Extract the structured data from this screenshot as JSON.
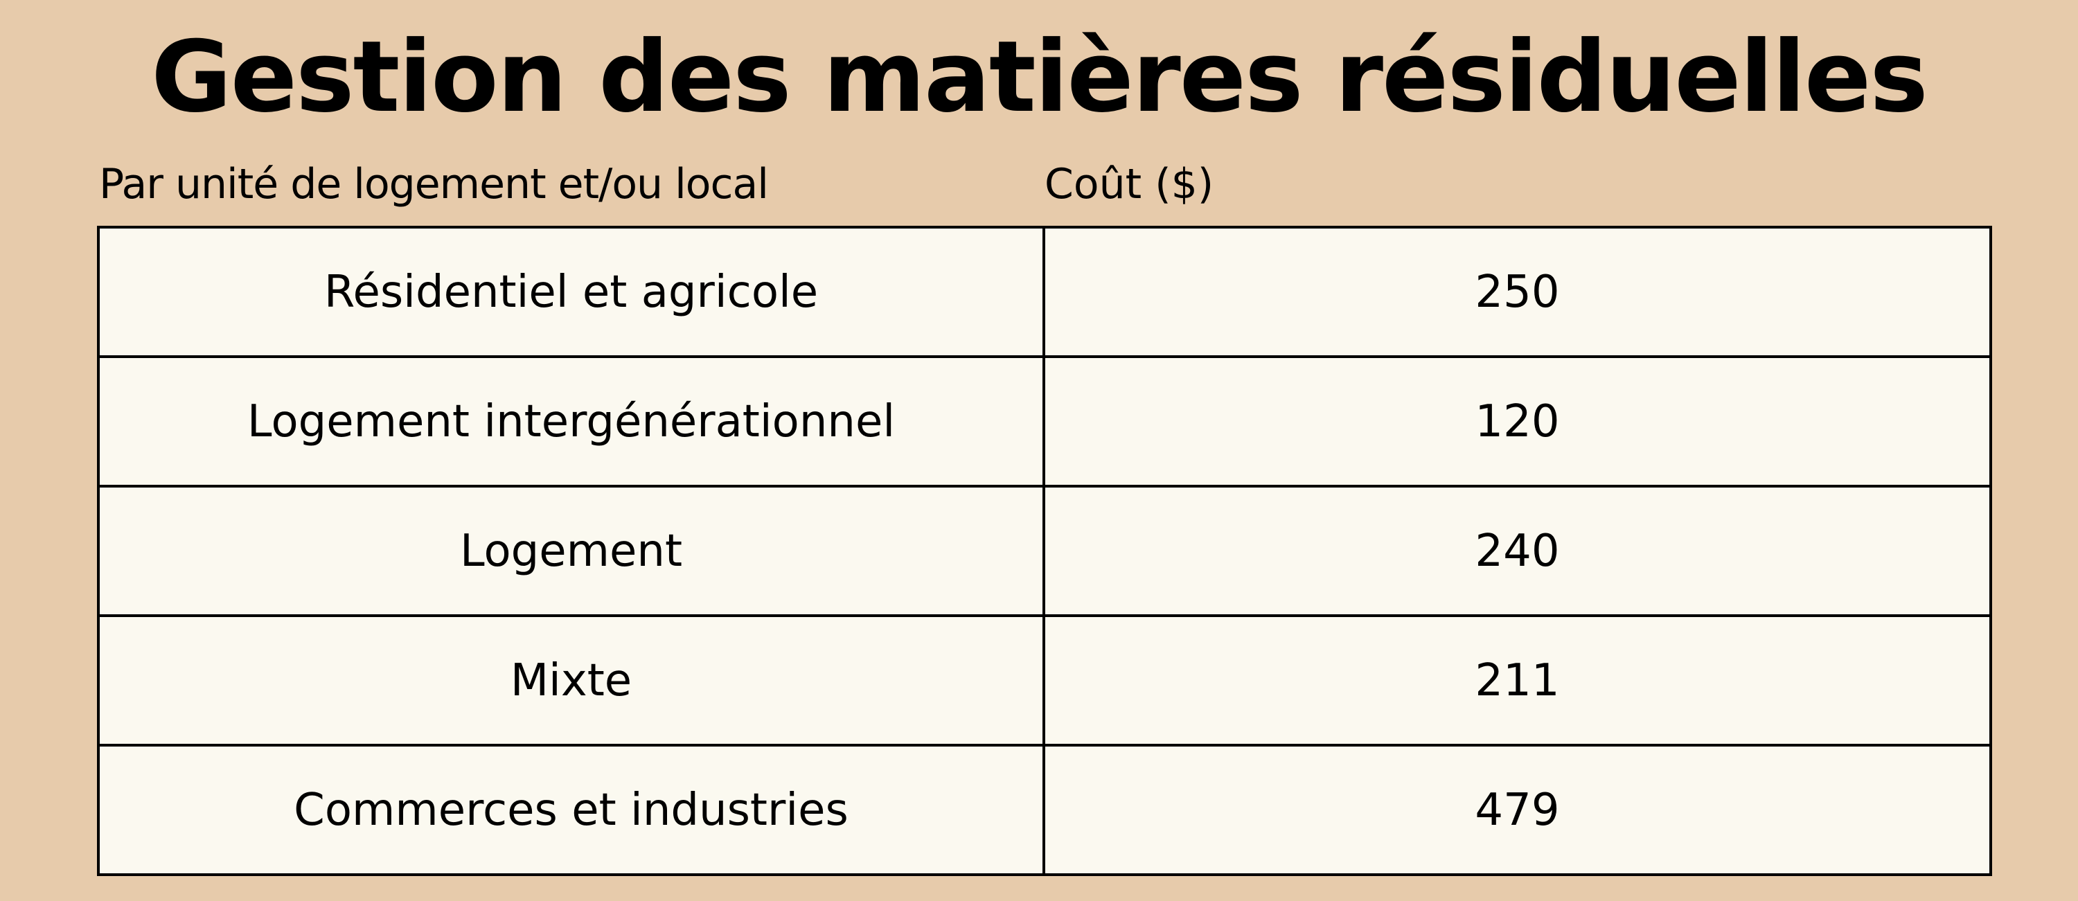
{
  "title": "Gestion des matières résiduelles",
  "table": {
    "headers": [
      "Par unité de logement et/ou local",
      "Coût ($)"
    ],
    "rows": [
      {
        "category": "Résidentiel et agricole",
        "cost": "250"
      },
      {
        "category": "Logement intergénérationnel",
        "cost": "120"
      },
      {
        "category": "Logement",
        "cost": "240"
      },
      {
        "category": "Mixte",
        "cost": "211"
      },
      {
        "category": "Commerces et industries",
        "cost": "479"
      }
    ]
  },
  "colors": {
    "background": "#e7cbab",
    "table_fill": "#fbf9f0",
    "border": "#000000",
    "text": "#000000"
  }
}
